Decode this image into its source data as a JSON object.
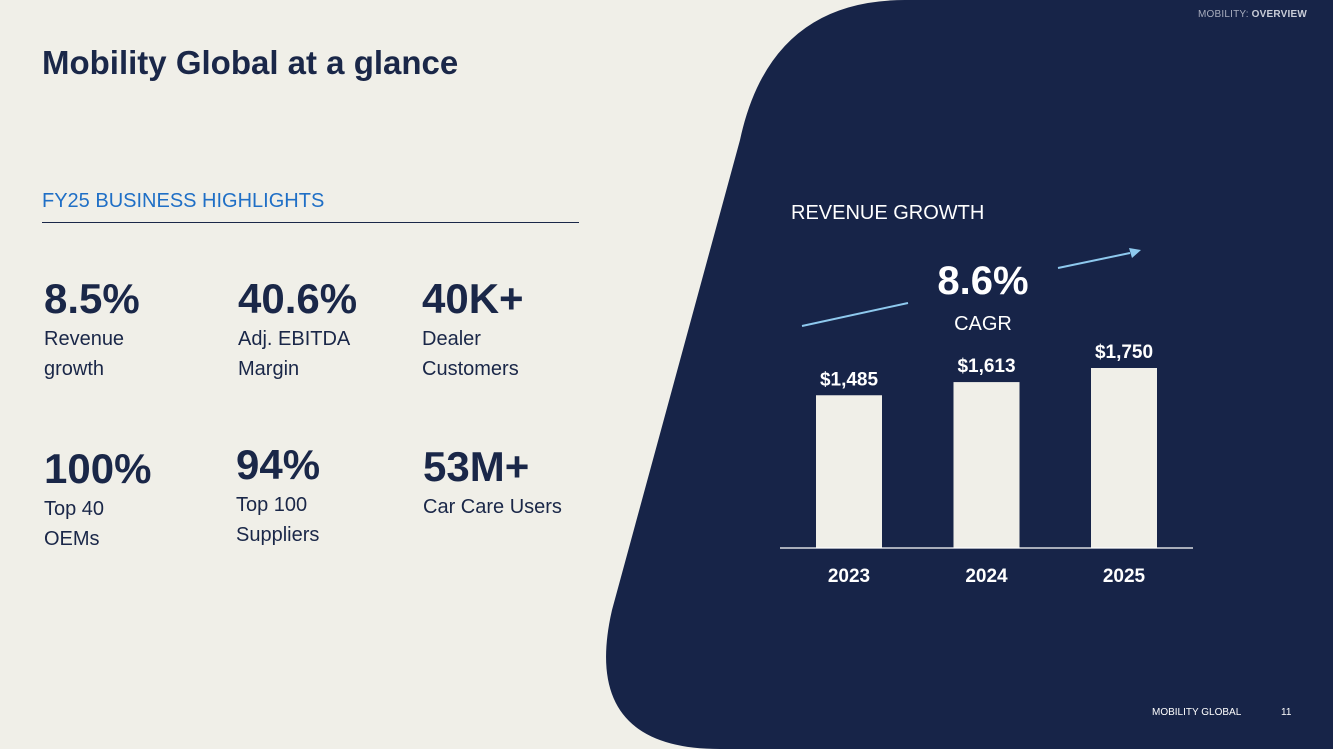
{
  "header": {
    "section": "MOBILITY:",
    "section_bold": "OVERVIEW"
  },
  "page": {
    "title": "Mobility Global at a glance"
  },
  "highlights": {
    "heading": "FY25 BUSINESS HIGHLIGHTS",
    "metrics": [
      {
        "value": "8.5%",
        "label": "Revenue growth"
      },
      {
        "value": "40.6%",
        "label": "Adj. EBITDA Margin"
      },
      {
        "value": "40K+",
        "label": "Dealer Customers"
      },
      {
        "value": "100%",
        "label": "Top 40 OEMs"
      },
      {
        "value": "94%",
        "label": "Top 100 Suppliers"
      },
      {
        "value": "53M+",
        "label": "Car Care Users"
      }
    ]
  },
  "chart_data": {
    "type": "bar",
    "title": "REVENUE GROWTH",
    "categories": [
      "2023",
      "2024",
      "2025"
    ],
    "values": [
      1485,
      1613,
      1750
    ],
    "data_labels": [
      "$1,485",
      "$1,613",
      "$1,750"
    ],
    "annotation": {
      "value": "8.6%",
      "label": "CAGR"
    },
    "ylim": [
      0,
      1750
    ],
    "grid": false,
    "legend": "none",
    "bar_color": "#f0efe8",
    "background_color": "#172448"
  },
  "footer": {
    "company": "MOBILITY GLOBAL",
    "page_number": "11"
  },
  "colors": {
    "navy": "#172448",
    "cream": "#f0efe8",
    "accent_blue": "#1f6fc6",
    "arrow": "#8ec9ee"
  }
}
